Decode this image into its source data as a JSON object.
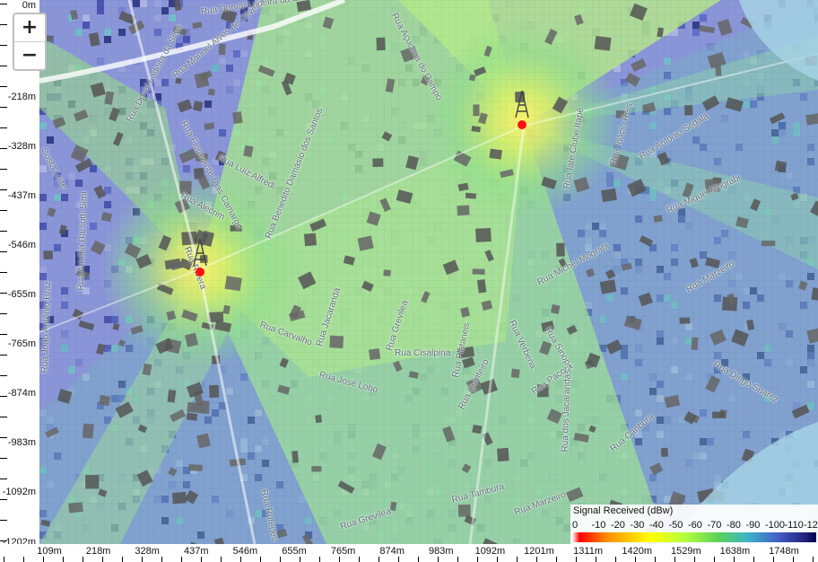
{
  "zoom": {
    "in_label": "+",
    "out_label": "−"
  },
  "y_axis": {
    "labels": [
      "0m",
      "-218m",
      "-328m",
      "-437m",
      "-546m",
      "-655m",
      "-765m",
      "-874m",
      "-983m",
      "-1092m",
      "-1202m"
    ]
  },
  "x_axis": {
    "labels": [
      "109m",
      "218m",
      "328m",
      "437m",
      "546m",
      "655m",
      "765m",
      "874m",
      "983m",
      "1092m",
      "1201m",
      "1311m",
      "1420m",
      "1529m",
      "1638m",
      "1748m"
    ]
  },
  "legend": {
    "title": "Signal Received (dBw)",
    "values": [
      "0",
      "-10",
      "-20",
      "-30",
      "-40",
      "-50",
      "-60",
      "-70",
      "-80",
      "-90",
      "-100",
      "-110",
      "-120"
    ]
  },
  "transmitters": [
    {
      "name": "transmitter-west",
      "x_m": 437,
      "y_m": -601
    },
    {
      "name": "transmitter-east",
      "x_m": 1186,
      "y_m": -254
    }
  ],
  "streets": [
    "Rua Durval Ladeira da Silva",
    "Rua Manoel Alves de Oliveira",
    "Rua Duval Ladeira da Silva",
    "Rua Açucena do Campo",
    "Rua Fioravante Dias Camargo",
    "Rua Luiz Alfredi",
    "Rua Benedito Damásio dos Santos",
    "Rua Alecrim",
    "Rua Iate Clube Itapé",
    "Rua Inácio Reis",
    "Rua Antonio Segala",
    "Rua Miguel Mograbi",
    "Rua Michel Mograbi",
    "Rua Marzeiro",
    "Rua Carvalho",
    "Rua Jacarandá",
    "Rua Grevilea",
    "Rua Plataneis",
    "Rua Cisalpina",
    "Rua José Lobo",
    "Rua Quinteiro",
    "Rua Verbena",
    "Rua Sinope",
    "Rua Pacora",
    "Rua dos Jacarandás",
    "Rua Diego Suarez",
    "Rua Canbura",
    "Rua Tambura",
    "Rua Marzeiro",
    "Rua Grevilea",
    "Rua Ruterles",
    "Costa Leite",
    "Rua Amélia Barsotti Simi",
    "Rua João Antônio Braz",
    "Rua Rivera",
    "Rua Plantanes"
  ]
}
